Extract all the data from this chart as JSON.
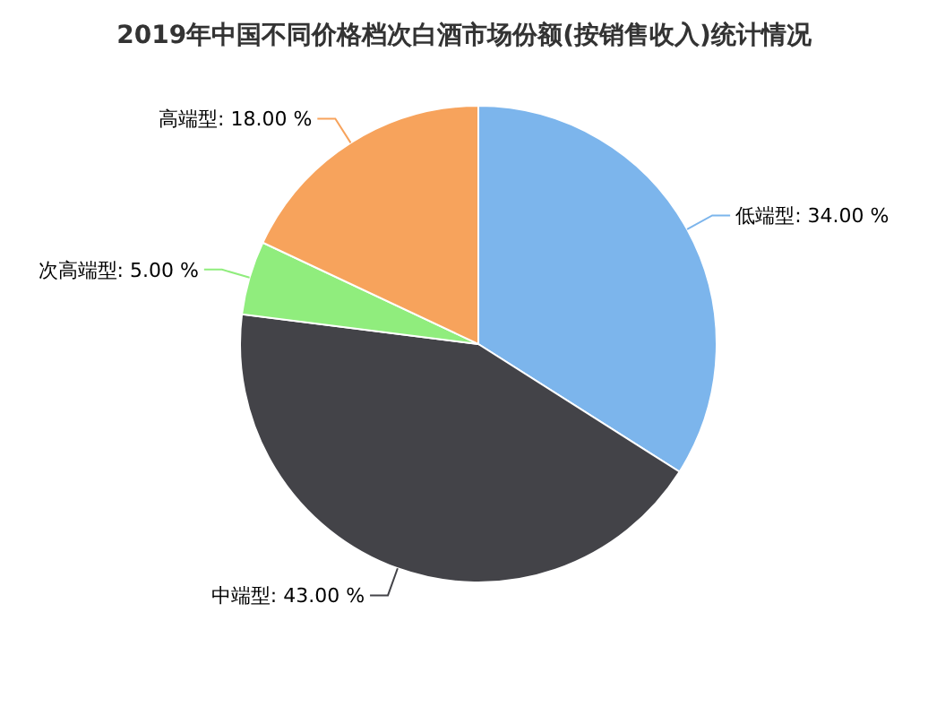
{
  "chart_data": {
    "type": "pie",
    "title": "2019年中国不同价格档次白酒市场份额(按销售收入)统计情况",
    "categories": [
      "低端型",
      "中端型",
      "次高端型",
      "高端型"
    ],
    "values": [
      34,
      43,
      5,
      18
    ],
    "value_labels": [
      "34.00 %",
      "43.00 %",
      "5.00 %",
      "18.00 %"
    ],
    "colors": [
      "#7cb5ec",
      "#434348",
      "#90ed7d",
      "#f7a35c"
    ],
    "legend": false
  }
}
